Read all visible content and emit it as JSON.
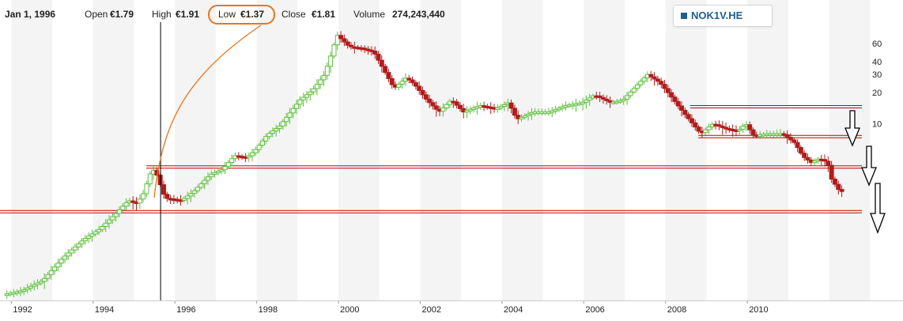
{
  "header": {
    "date": "Jan 1, 1996",
    "open_label": "Open",
    "open_value": "€1.79",
    "high_label": "High",
    "high_value": "€1.91",
    "low_label": "Low",
    "low_value": "€1.37",
    "close_label": "Close",
    "close_value": "€1.81",
    "volume_label": "Volume",
    "volume_value": "274,243,440"
  },
  "legend": {
    "symbol": "NOK1V.HE",
    "color": "#1f5f8f"
  },
  "colors": {
    "up": "#5cbf3a",
    "down": "#b01c1c",
    "support_line": "#c40000",
    "annotation": "#e8751a",
    "band": "#f4f4f4"
  },
  "chart_data": {
    "type": "candlestick",
    "x_axis": {
      "ticks": [
        "1992",
        "1994",
        "1996",
        "1998",
        "2000",
        "2002",
        "2004",
        "2006",
        "2008",
        "2010"
      ],
      "range": [
        1991.8,
        2012.8
      ]
    },
    "y_axis": {
      "scale": "log",
      "ticks": [
        10,
        20,
        30,
        40,
        60
      ],
      "range": [
        0.2,
        90
      ]
    },
    "crosshair_x": 1995.65,
    "support_lines": [
      7.5,
      3.8,
      14.6,
      1.4
    ],
    "points": [
      [
        1991.85,
        0.22
      ],
      [
        1992.3,
        0.24
      ],
      [
        1992.8,
        0.3
      ],
      [
        1993.3,
        0.5
      ],
      [
        1993.8,
        0.75
      ],
      [
        1994.2,
        0.95
      ],
      [
        1994.6,
        1.35
      ],
      [
        1994.9,
        1.8
      ],
      [
        1995.1,
        1.7
      ],
      [
        1995.25,
        2.0
      ],
      [
        1995.45,
        3.4
      ],
      [
        1995.55,
        3.6
      ],
      [
        1995.8,
        1.9
      ],
      [
        1996.2,
        1.8
      ],
      [
        1996.5,
        2.2
      ],
      [
        1996.9,
        3.2
      ],
      [
        1997.2,
        3.6
      ],
      [
        1997.5,
        4.9
      ],
      [
        1997.8,
        4.7
      ],
      [
        1998.0,
        5.5
      ],
      [
        1998.3,
        7.8
      ],
      [
        1998.6,
        9.5
      ],
      [
        1998.8,
        12
      ],
      [
        1999.1,
        17
      ],
      [
        1999.4,
        21
      ],
      [
        1999.7,
        30
      ],
      [
        1999.9,
        52
      ],
      [
        2000.0,
        73
      ],
      [
        2000.3,
        56
      ],
      [
        2000.6,
        54
      ],
      [
        2000.9,
        50
      ],
      [
        2001.1,
        36
      ],
      [
        2001.4,
        22
      ],
      [
        2001.7,
        28
      ],
      [
        2001.9,
        24
      ],
      [
        2002.2,
        17
      ],
      [
        2002.5,
        13
      ],
      [
        2002.8,
        17
      ],
      [
        2003.1,
        13
      ],
      [
        2003.5,
        15
      ],
      [
        2003.9,
        14
      ],
      [
        2004.2,
        16
      ],
      [
        2004.4,
        11
      ],
      [
        2004.8,
        13
      ],
      [
        2005.2,
        13
      ],
      [
        2005.6,
        15
      ],
      [
        2006.0,
        16
      ],
      [
        2006.3,
        19
      ],
      [
        2006.7,
        16
      ],
      [
        2007.0,
        17
      ],
      [
        2007.4,
        25
      ],
      [
        2007.6,
        30
      ],
      [
        2007.9,
        25
      ],
      [
        2008.1,
        20
      ],
      [
        2008.4,
        14
      ],
      [
        2008.7,
        10
      ],
      [
        2008.9,
        8
      ],
      [
        2009.2,
        10
      ],
      [
        2009.5,
        9
      ],
      [
        2009.8,
        8.5
      ],
      [
        2010.0,
        10
      ],
      [
        2010.2,
        7.6
      ],
      [
        2010.5,
        8
      ],
      [
        2010.9,
        8
      ],
      [
        2011.2,
        6.5
      ],
      [
        2011.4,
        4.8
      ],
      [
        2011.6,
        4.2
      ],
      [
        2011.8,
        4.6
      ],
      [
        2012.0,
        4.2
      ],
      [
        2012.1,
        2.9
      ],
      [
        2012.3,
        2.2
      ]
    ]
  }
}
